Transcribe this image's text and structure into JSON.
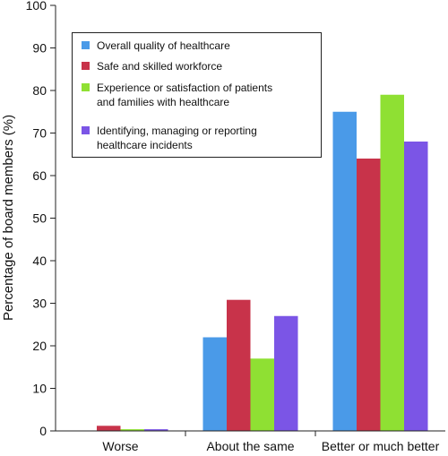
{
  "chart_data": {
    "type": "bar",
    "title": "",
    "xlabel": "",
    "ylabel": "Percentage of board members (%)",
    "ylim": [
      0,
      100
    ],
    "yticks": [
      0,
      10,
      20,
      30,
      40,
      50,
      60,
      70,
      80,
      90,
      100
    ],
    "categories": [
      "Worse",
      "About the same",
      "Better or much better"
    ],
    "grid": false,
    "legend_position": "top-left",
    "series": [
      {
        "name_lines": [
          "Overall quality of healthcare"
        ],
        "color": "#4a9ae8",
        "values": [
          0,
          22,
          75
        ]
      },
      {
        "name_lines": [
          "Safe and skilled workforce"
        ],
        "color": "#c8334a",
        "values": [
          1.2,
          30.8,
          64
        ]
      },
      {
        "name_lines": [
          "Experience or satisfaction of patients",
          "and families with healthcare"
        ],
        "color": "#8fe033",
        "values": [
          0.4,
          17,
          79
        ]
      },
      {
        "name_lines": [
          "Identifying, managing or reporting",
          "healthcare incidents"
        ],
        "color": "#7b55e6",
        "values": [
          0.4,
          27,
          68
        ]
      }
    ]
  }
}
